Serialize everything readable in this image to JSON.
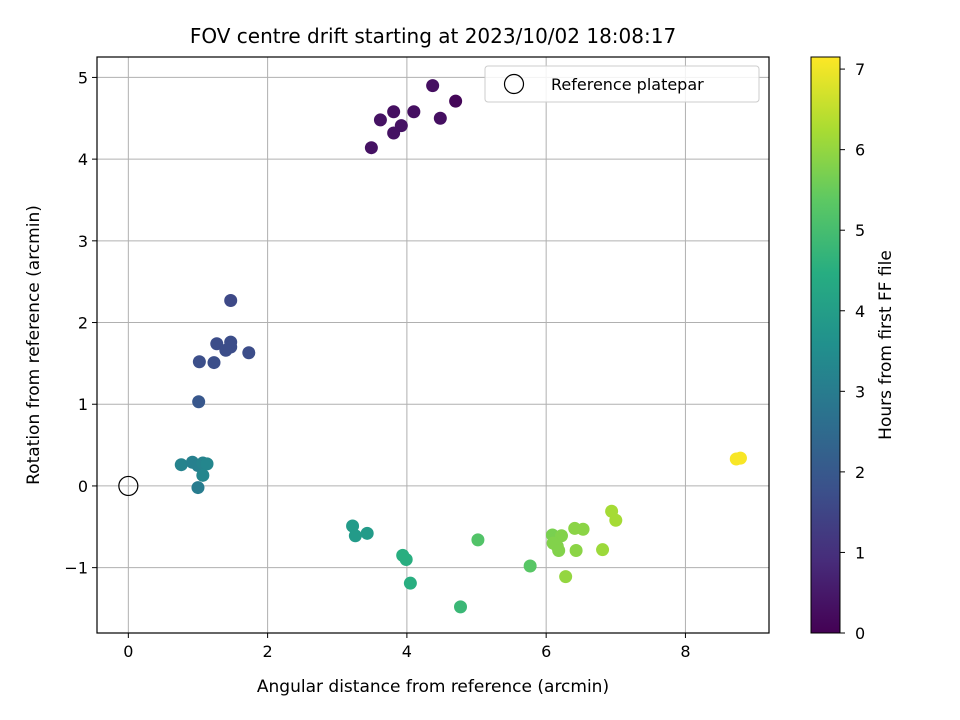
{
  "chart_data": {
    "type": "scatter",
    "title": "FOV centre drift starting at 2023/10/02 18:08:17",
    "xlabel": "Angular distance from reference (arcmin)",
    "ylabel": "Rotation from reference (arcmin)",
    "xlim": [
      -0.45,
      9.2
    ],
    "ylim": [
      -1.8,
      5.25
    ],
    "xticks": [
      0,
      2,
      4,
      6,
      8
    ],
    "xtick_labels": [
      "0",
      "2",
      "4",
      "6",
      "8"
    ],
    "yticks": [
      -1,
      0,
      1,
      2,
      3,
      4,
      5
    ],
    "ytick_labels": [
      "−1",
      "0",
      "1",
      "2",
      "3",
      "4",
      "5"
    ],
    "grid": true,
    "legend": {
      "placement": "top-right",
      "entries": [
        "Reference platepar"
      ]
    },
    "reference_point": {
      "x": 0,
      "y": 0,
      "label": "Reference platepar"
    },
    "colorbar": {
      "label": "Hours from first FF file",
      "colormap": "viridis",
      "range": [
        0,
        7.15
      ],
      "ticks": [
        0,
        1,
        2,
        3,
        4,
        5,
        6,
        7
      ],
      "tick_labels": [
        "0",
        "1",
        "2",
        "3",
        "4",
        "5",
        "6",
        "7"
      ]
    },
    "points": [
      {
        "x": 3.49,
        "y": 4.14,
        "c": 0.35
      },
      {
        "x": 3.81,
        "y": 4.32,
        "c": 0.35
      },
      {
        "x": 3.92,
        "y": 4.41,
        "c": 0.35
      },
      {
        "x": 3.62,
        "y": 4.48,
        "c": 0.35
      },
      {
        "x": 3.81,
        "y": 4.58,
        "c": 0.3
      },
      {
        "x": 4.1,
        "y": 4.58,
        "c": 0.3
      },
      {
        "x": 4.48,
        "y": 4.5,
        "c": 0.3
      },
      {
        "x": 4.7,
        "y": 4.71,
        "c": 0.1
      },
      {
        "x": 4.37,
        "y": 4.9,
        "c": 0.3
      },
      {
        "x": 1.47,
        "y": 2.27,
        "c": 1.6
      },
      {
        "x": 1.27,
        "y": 1.74,
        "c": 1.7
      },
      {
        "x": 1.47,
        "y": 1.76,
        "c": 1.7
      },
      {
        "x": 1.47,
        "y": 1.7,
        "c": 1.7
      },
      {
        "x": 1.4,
        "y": 1.66,
        "c": 1.7
      },
      {
        "x": 1.73,
        "y": 1.63,
        "c": 1.7
      },
      {
        "x": 1.02,
        "y": 1.52,
        "c": 1.75
      },
      {
        "x": 1.23,
        "y": 1.51,
        "c": 1.75
      },
      {
        "x": 1.01,
        "y": 1.03,
        "c": 1.95
      },
      {
        "x": 0.76,
        "y": 0.26,
        "c": 3.2
      },
      {
        "x": 0.92,
        "y": 0.29,
        "c": 3.1
      },
      {
        "x": 1.0,
        "y": 0.25,
        "c": 3.1
      },
      {
        "x": 1.07,
        "y": 0.28,
        "c": 3.2
      },
      {
        "x": 1.13,
        "y": 0.27,
        "c": 3.3
      },
      {
        "x": 1.07,
        "y": 0.13,
        "c": 3.3
      },
      {
        "x": 1.0,
        "y": -0.02,
        "c": 3.0
      },
      {
        "x": 3.22,
        "y": -0.49,
        "c": 3.9
      },
      {
        "x": 3.26,
        "y": -0.61,
        "c": 3.9
      },
      {
        "x": 3.43,
        "y": -0.58,
        "c": 3.9
      },
      {
        "x": 3.94,
        "y": -0.85,
        "c": 4.5
      },
      {
        "x": 3.99,
        "y": -0.9,
        "c": 4.5
      },
      {
        "x": 4.05,
        "y": -1.19,
        "c": 4.5
      },
      {
        "x": 4.77,
        "y": -1.48,
        "c": 4.8
      },
      {
        "x": 5.02,
        "y": -0.66,
        "c": 5.2
      },
      {
        "x": 5.77,
        "y": -0.98,
        "c": 5.3
      },
      {
        "x": 6.09,
        "y": -0.6,
        "c": 5.7
      },
      {
        "x": 6.15,
        "y": -0.64,
        "c": 5.7
      },
      {
        "x": 6.22,
        "y": -0.61,
        "c": 5.8
      },
      {
        "x": 6.1,
        "y": -0.7,
        "c": 5.8
      },
      {
        "x": 6.16,
        "y": -0.74,
        "c": 5.8
      },
      {
        "x": 6.18,
        "y": -0.79,
        "c": 5.8
      },
      {
        "x": 6.41,
        "y": -0.52,
        "c": 5.9
      },
      {
        "x": 6.53,
        "y": -0.53,
        "c": 5.9
      },
      {
        "x": 6.43,
        "y": -0.79,
        "c": 5.9
      },
      {
        "x": 6.28,
        "y": -1.11,
        "c": 6.0
      },
      {
        "x": 6.81,
        "y": -0.78,
        "c": 6.1
      },
      {
        "x": 6.94,
        "y": -0.31,
        "c": 6.2
      },
      {
        "x": 7.0,
        "y": -0.42,
        "c": 6.2
      },
      {
        "x": 8.73,
        "y": 0.33,
        "c": 7.1
      },
      {
        "x": 8.79,
        "y": 0.34,
        "c": 7.1
      }
    ]
  }
}
